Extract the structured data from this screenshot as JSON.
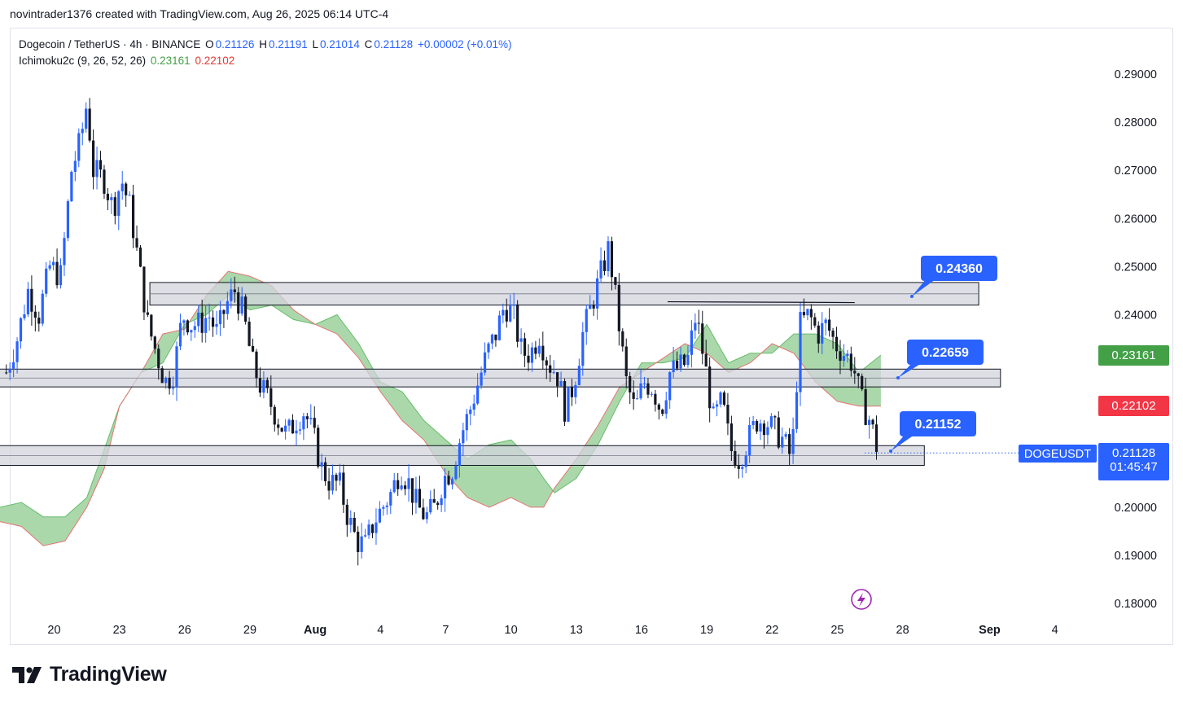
{
  "header": {
    "caption": "novintrader1376 created with TradingView.com, Aug 26, 2025 06:14 UTC-4"
  },
  "legend": {
    "symbol": "Dogecoin / TetherUS · 4h · BINANCE",
    "o_label": "O",
    "o_value": "0.21126",
    "h_label": "H",
    "h_value": "0.21191",
    "l_label": "L",
    "l_value": "0.21014",
    "c_label": "C",
    "c_value": "0.21128",
    "change": "+0.00002 (+0.01%)",
    "indicator": "Ichimoku2c (9, 26, 52, 26)",
    "ind_value_1": "0.23161",
    "ind_value_2": "0.22102"
  },
  "brand": {
    "name": "TradingView"
  },
  "colors": {
    "up": "#2962ff",
    "down": "#131722",
    "cloud_fill": "#a5d6a7",
    "cloud_edge": "#e57373",
    "zone_fill": "#d1d4dc",
    "callout": "#2962ff",
    "green_tag": "#43a047",
    "red_tag": "#f23645"
  },
  "chart_data": {
    "type": "candlestick",
    "symbol": "DOGEUSDT",
    "ylim": [
      0.175,
      0.295
    ],
    "y_ticks": [
      "0.29000",
      "0.28000",
      "0.27000",
      "0.26000",
      "0.25000",
      "0.24000",
      "0.20000",
      "0.19000",
      "0.18000"
    ],
    "x_ticks": [
      {
        "label": "20",
        "day": 20
      },
      {
        "label": "23",
        "day": 23
      },
      {
        "label": "26",
        "day": 26
      },
      {
        "label": "29",
        "day": 29
      },
      {
        "label": "Aug",
        "day": 32
      },
      {
        "label": "4",
        "day": 35
      },
      {
        "label": "7",
        "day": 38
      },
      {
        "label": "10",
        "day": 41
      },
      {
        "label": "13",
        "day": 44
      },
      {
        "label": "16",
        "day": 47
      },
      {
        "label": "19",
        "day": 50
      },
      {
        "label": "22",
        "day": 53
      },
      {
        "label": "25",
        "day": 56
      },
      {
        "label": "28",
        "day": 59
      },
      {
        "label": "Sep",
        "day": 63
      },
      {
        "label": "4",
        "day": 66
      }
    ],
    "x_unit": "days from Jul 1, 2025",
    "price_path": [
      [
        17.8,
        0.228
      ],
      [
        18.3,
        0.235
      ],
      [
        18.8,
        0.245
      ],
      [
        19.3,
        0.24
      ],
      [
        19.8,
        0.25
      ],
      [
        20.3,
        0.248
      ],
      [
        20.8,
        0.27
      ],
      [
        21.2,
        0.276
      ],
      [
        21.5,
        0.284
      ],
      [
        21.8,
        0.27
      ],
      [
        22.3,
        0.268
      ],
      [
        22.7,
        0.262
      ],
      [
        23.1,
        0.268
      ],
      [
        23.5,
        0.262
      ],
      [
        23.9,
        0.25
      ],
      [
        24.3,
        0.238
      ],
      [
        24.7,
        0.232
      ],
      [
        25.1,
        0.226
      ],
      [
        25.5,
        0.228
      ],
      [
        25.9,
        0.24
      ],
      [
        26.3,
        0.238
      ],
      [
        26.7,
        0.238
      ],
      [
        27.1,
        0.24
      ],
      [
        27.5,
        0.236
      ],
      [
        27.9,
        0.242
      ],
      [
        28.3,
        0.245
      ],
      [
        28.7,
        0.24
      ],
      [
        29.1,
        0.23
      ],
      [
        29.5,
        0.225
      ],
      [
        29.9,
        0.222
      ],
      [
        30.3,
        0.218
      ],
      [
        30.7,
        0.215
      ],
      [
        31.1,
        0.218
      ],
      [
        31.5,
        0.22
      ],
      [
        31.9,
        0.215
      ],
      [
        32.3,
        0.208
      ],
      [
        32.7,
        0.205
      ],
      [
        33.1,
        0.205
      ],
      [
        33.5,
        0.198
      ],
      [
        33.9,
        0.193
      ],
      [
        34.3,
        0.192
      ],
      [
        34.7,
        0.197
      ],
      [
        35.1,
        0.2
      ],
      [
        35.5,
        0.203
      ],
      [
        35.9,
        0.208
      ],
      [
        36.3,
        0.205
      ],
      [
        36.7,
        0.2
      ],
      [
        37.1,
        0.198
      ],
      [
        37.5,
        0.2
      ],
      [
        37.9,
        0.206
      ],
      [
        38.3,
        0.208
      ],
      [
        38.7,
        0.215
      ],
      [
        39.1,
        0.22
      ],
      [
        39.5,
        0.226
      ],
      [
        39.9,
        0.232
      ],
      [
        40.3,
        0.236
      ],
      [
        40.7,
        0.242
      ],
      [
        41.1,
        0.24
      ],
      [
        41.5,
        0.232
      ],
      [
        41.9,
        0.232
      ],
      [
        42.3,
        0.236
      ],
      [
        42.7,
        0.23
      ],
      [
        43.1,
        0.228
      ],
      [
        43.5,
        0.22
      ],
      [
        43.9,
        0.226
      ],
      [
        44.3,
        0.236
      ],
      [
        44.7,
        0.242
      ],
      [
        45.1,
        0.248
      ],
      [
        45.5,
        0.254
      ],
      [
        45.9,
        0.24
      ],
      [
        46.3,
        0.226
      ],
      [
        46.7,
        0.22
      ],
      [
        47.1,
        0.226
      ],
      [
        47.5,
        0.225
      ],
      [
        47.9,
        0.22
      ],
      [
        48.3,
        0.228
      ],
      [
        48.7,
        0.229
      ],
      [
        49.1,
        0.23
      ],
      [
        49.5,
        0.24
      ],
      [
        49.9,
        0.23
      ],
      [
        50.3,
        0.218
      ],
      [
        50.7,
        0.222
      ],
      [
        51.1,
        0.212
      ],
      [
        51.5,
        0.21
      ],
      [
        51.9,
        0.214
      ],
      [
        52.3,
        0.218
      ],
      [
        52.7,
        0.218
      ],
      [
        53.1,
        0.216
      ],
      [
        53.5,
        0.214
      ],
      [
        53.9,
        0.21
      ],
      [
        54.3,
        0.238
      ],
      [
        54.7,
        0.24
      ],
      [
        55.1,
        0.236
      ],
      [
        55.5,
        0.238
      ],
      [
        55.9,
        0.234
      ],
      [
        56.3,
        0.232
      ],
      [
        56.7,
        0.23
      ],
      [
        57.1,
        0.222
      ],
      [
        57.5,
        0.218
      ],
      [
        57.9,
        0.211
      ]
    ],
    "zones": [
      {
        "label": "0.24360",
        "low": 0.242,
        "high": 0.2467,
        "from": 24.4,
        "to": 62.5
      },
      {
        "label": "0.22659",
        "low": 0.225,
        "high": 0.2287,
        "from": 16.5,
        "to": 63.5
      },
      {
        "label": "0.21152",
        "low": 0.2087,
        "high": 0.2128,
        "from": 16.5,
        "to": 60.0
      }
    ],
    "resistance_line": {
      "value": 0.2427,
      "from": 48.2,
      "to": 56.8
    },
    "last_price": "0.21128",
    "countdown": "01:45:47",
    "ichimoku_span_a": "0.23161",
    "ichimoku_span_b": "0.22102",
    "span_a": [
      [
        16.5,
        0.1885
      ],
      [
        17.5,
        0.2
      ],
      [
        18.5,
        0.201
      ],
      [
        19.5,
        0.198
      ],
      [
        20.5,
        0.198
      ],
      [
        21.5,
        0.202
      ],
      [
        22.3,
        0.212
      ],
      [
        23.0,
        0.221
      ],
      [
        24.0,
        0.228
      ],
      [
        25.0,
        0.23
      ],
      [
        26.0,
        0.238
      ],
      [
        27.0,
        0.24
      ],
      [
        28.0,
        0.244
      ],
      [
        29.0,
        0.241
      ],
      [
        30.0,
        0.242
      ],
      [
        31.0,
        0.239
      ],
      [
        32.0,
        0.238
      ],
      [
        33.0,
        0.24
      ],
      [
        34.0,
        0.234
      ],
      [
        35.0,
        0.226
      ],
      [
        36.0,
        0.224
      ],
      [
        37.0,
        0.218
      ],
      [
        38.0,
        0.214
      ],
      [
        39.0,
        0.21
      ],
      [
        40.0,
        0.213
      ],
      [
        41.0,
        0.214
      ],
      [
        41.9,
        0.21
      ],
      [
        42.5,
        0.206
      ],
      [
        43.0,
        0.203
      ],
      [
        44.0,
        0.206
      ],
      [
        45.0,
        0.213
      ],
      [
        46.0,
        0.222
      ],
      [
        47.0,
        0.23
      ],
      [
        48.0,
        0.23
      ],
      [
        49.0,
        0.231
      ],
      [
        50.0,
        0.238
      ],
      [
        51.0,
        0.23
      ],
      [
        52.0,
        0.232
      ],
      [
        53.0,
        0.232
      ],
      [
        54.0,
        0.236
      ],
      [
        55.0,
        0.236
      ],
      [
        56.0,
        0.234
      ],
      [
        57.0,
        0.228
      ],
      [
        58.0,
        0.2316
      ]
    ],
    "span_b": [
      [
        16.5,
        0.196
      ],
      [
        17.5,
        0.197
      ],
      [
        18.5,
        0.196
      ],
      [
        19.5,
        0.192
      ],
      [
        20.5,
        0.193
      ],
      [
        21.5,
        0.2
      ],
      [
        22.3,
        0.208
      ],
      [
        23.0,
        0.221
      ],
      [
        24.0,
        0.228
      ],
      [
        25.0,
        0.236
      ],
      [
        26.0,
        0.237
      ],
      [
        27.0,
        0.244
      ],
      [
        28.0,
        0.249
      ],
      [
        29.0,
        0.248
      ],
      [
        30.0,
        0.246
      ],
      [
        31.0,
        0.241
      ],
      [
        32.0,
        0.238
      ],
      [
        33.0,
        0.236
      ],
      [
        34.0,
        0.231
      ],
      [
        35.0,
        0.224
      ],
      [
        36.0,
        0.218
      ],
      [
        37.0,
        0.214
      ],
      [
        38.0,
        0.207
      ],
      [
        39.0,
        0.202
      ],
      [
        40.0,
        0.2
      ],
      [
        41.0,
        0.202
      ],
      [
        41.9,
        0.2
      ],
      [
        42.5,
        0.2
      ],
      [
        43.0,
        0.204
      ],
      [
        44.0,
        0.21
      ],
      [
        45.0,
        0.217
      ],
      [
        46.0,
        0.225
      ],
      [
        47.0,
        0.228
      ],
      [
        48.0,
        0.231
      ],
      [
        49.0,
        0.234
      ],
      [
        50.0,
        0.232
      ],
      [
        51.0,
        0.228
      ],
      [
        52.0,
        0.23
      ],
      [
        53.0,
        0.234
      ],
      [
        54.0,
        0.232
      ],
      [
        55.0,
        0.226
      ],
      [
        56.0,
        0.222
      ],
      [
        57.0,
        0.221
      ],
      [
        58.0,
        0.221
      ]
    ]
  }
}
